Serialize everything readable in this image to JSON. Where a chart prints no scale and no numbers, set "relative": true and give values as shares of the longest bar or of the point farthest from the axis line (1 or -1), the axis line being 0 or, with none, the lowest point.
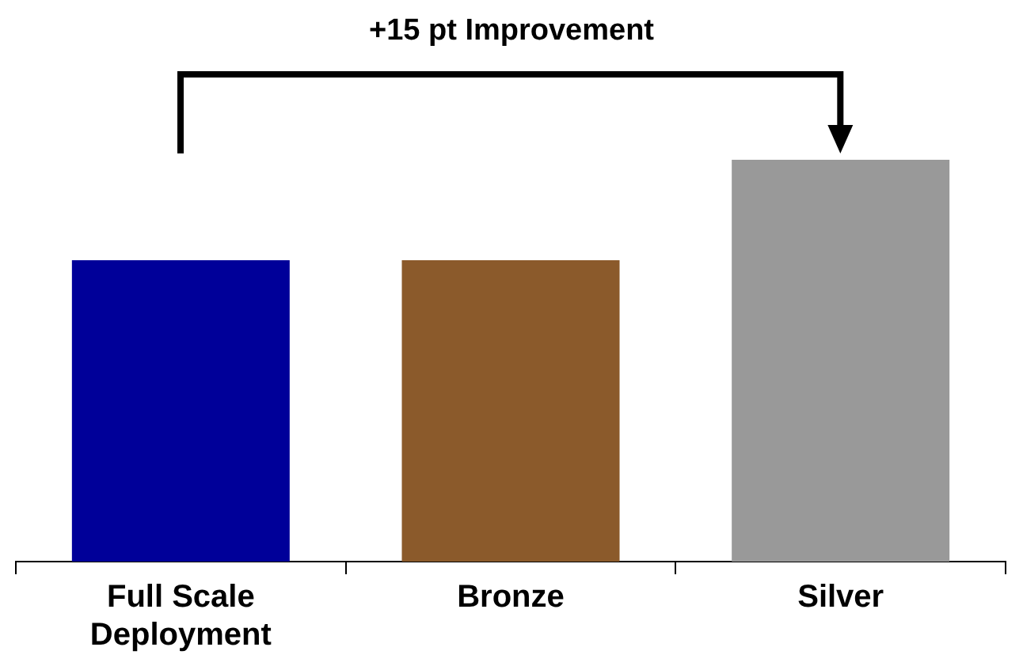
{
  "chart_data": {
    "type": "bar",
    "relative": true,
    "categories": [
      "Full Scale Deployment",
      "Bronze",
      "Silver"
    ],
    "values": [
      0.75,
      0.75,
      1
    ],
    "colors": [
      "#000099",
      "#8b5a2b",
      "#999999"
    ],
    "annotations": [
      "+15 pt Improvement"
    ],
    "grid": false,
    "legend": false
  }
}
